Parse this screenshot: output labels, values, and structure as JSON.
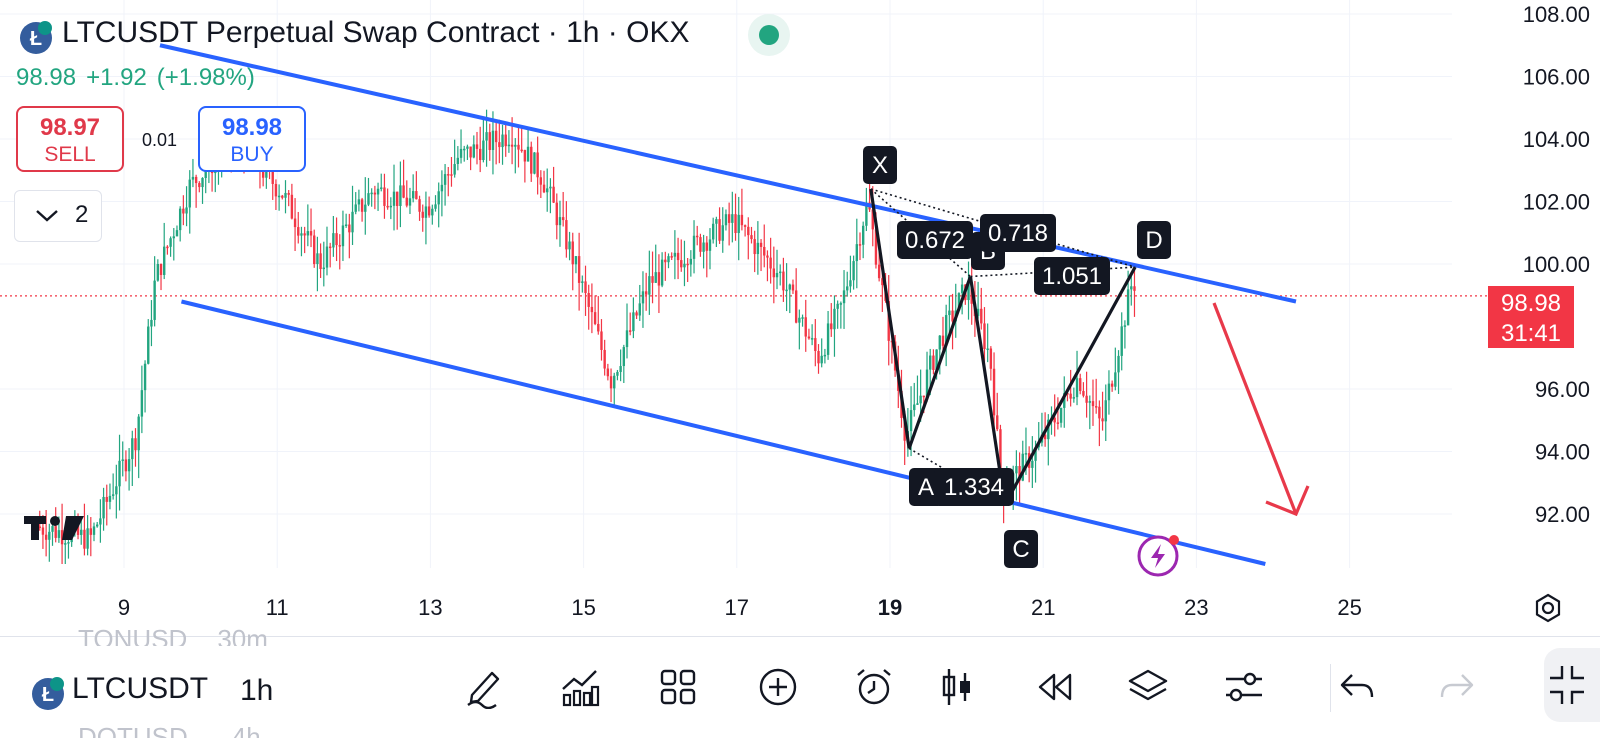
{
  "header": {
    "title": "LTCUSDT Perpetual Swap Contract · 1h · OKX",
    "last_price": "98.98",
    "change": "+1.92",
    "change_pct": "(+1.98%)"
  },
  "trade": {
    "sell_price": "98.97",
    "sell_label": "SELL",
    "spread": "0.01",
    "buy_price": "98.98",
    "buy_label": "BUY"
  },
  "indicators_toggle": {
    "count": "2"
  },
  "price_tag": {
    "price": "98.98",
    "countdown": "31:41"
  },
  "pattern_labels": {
    "x": "X",
    "a": "A",
    "b": "B",
    "c": "C",
    "d": "D",
    "xab": "0.672",
    "xad": "0.718",
    "abc": "1.334",
    "bcd": "1.051"
  },
  "chart_data": {
    "type": "candlestick",
    "symbol": "LTCUSDT",
    "interval": "1h",
    "exchange": "OKX",
    "y_ticks": [
      "108.00",
      "106.00",
      "104.00",
      "102.00",
      "100.00",
      "96.00",
      "94.00",
      "92.00"
    ],
    "x_ticks": [
      "9",
      "11",
      "13",
      "15",
      "17",
      "19",
      "21",
      "23",
      "25"
    ],
    "ylim": [
      90.4,
      108.5
    ],
    "current_price": 98.98,
    "channel": {
      "upper": [
        [
          9.47,
          107.0
        ],
        [
          24.3,
          98.8
        ]
      ],
      "lower": [
        [
          9.75,
          98.8
        ],
        [
          23.9,
          90.4
        ]
      ]
    },
    "harmonic_pattern": {
      "points": {
        "X": [
          18.75,
          102.4
        ],
        "A": [
          19.25,
          94.1
        ],
        "B": [
          20.05,
          99.6
        ],
        "C": [
          20.5,
          92.3
        ],
        "D": [
          22.2,
          99.9
        ]
      },
      "ratios": {
        "XAB": 0.672,
        "XAD": 0.718,
        "ABC": 1.334,
        "BCD": 1.051
      }
    },
    "projection_arrow": {
      "from": [
        22.0,
        98.8
      ],
      "to": [
        23.0,
        92.5
      ]
    },
    "grid": true
  },
  "toolbar": {
    "symbol": "LTCUSDT",
    "interval": "1h",
    "ghost_symbol_above": "TONUSD",
    "ghost_interval_above": "30m",
    "ghost_symbol_below": "DOTUSD",
    "ghost_interval_below": "4h",
    "icons": [
      "pencil-icon",
      "indicators-icon",
      "grid-icon",
      "add-icon",
      "alarm-icon",
      "candles-icon",
      "replay-icon",
      "layers-icon",
      "settings-sliders-icon",
      "undo-icon",
      "redo-icon",
      "fullscreen-icon"
    ]
  },
  "colors": {
    "up": "#22a580",
    "down": "#f23645",
    "channel": "#2962ff",
    "pattern": "#131722",
    "arrow": "#e8394a"
  }
}
